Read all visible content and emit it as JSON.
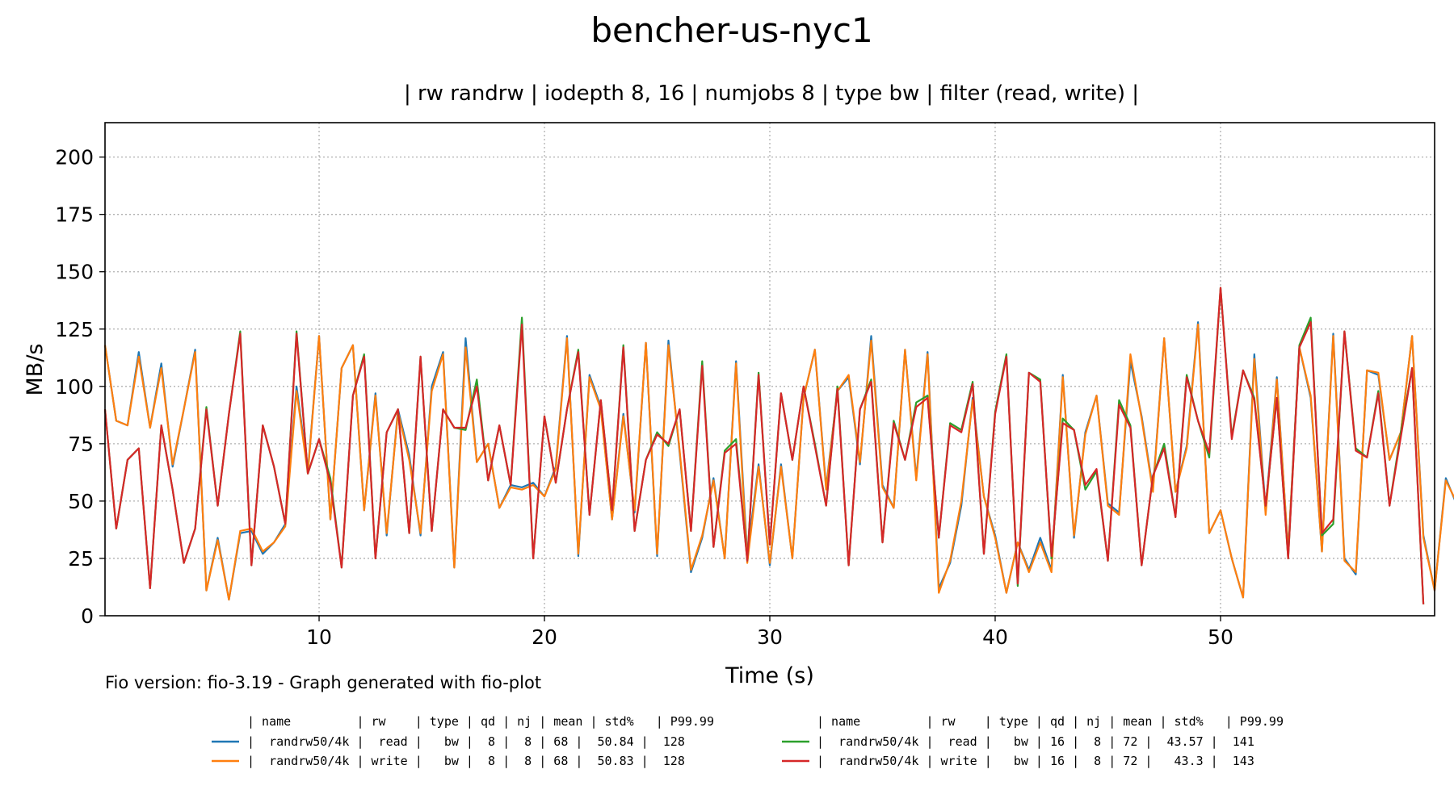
{
  "chart_data": {
    "type": "line",
    "title": "bencher-us-nyc1",
    "subtitle": "| rw randrw | iodepth 8, 16 | numjobs 8 | type bw | filter (read, write) |",
    "xlabel": "Time (s)",
    "ylabel": "MB/s",
    "xlim": [
      0.5,
      59.5
    ],
    "ylim": [
      0,
      215
    ],
    "x_ticks": [
      10,
      20,
      30,
      40,
      50
    ],
    "y_ticks": [
      0,
      25,
      50,
      75,
      100,
      125,
      150,
      175,
      200
    ],
    "grid": true,
    "footnote": "Fio version: fio-3.19 - Graph generated with fio-plot",
    "legend": {
      "placement": "bottom",
      "left_header": "| name         | rw    | type | qd | nj | mean | std%   | P99.99",
      "right_header": "| name         | rw    | type | qd | nj | mean | std%   | P99.99",
      "rows": [
        {
          "column": 0,
          "series": 0,
          "text": "|  randrw50/4k |  read |   bw |  8 |  8 | 68 |  50.84 |  128"
        },
        {
          "column": 0,
          "series": 1,
          "text": "|  randrw50/4k | write |   bw |  8 |  8 | 68 |  50.83 |  128"
        },
        {
          "column": 1,
          "series": 2,
          "text": "|  randrw50/4k |  read |   bw | 16 |  8 | 72 |  43.57 |  141"
        },
        {
          "column": 1,
          "series": 3,
          "text": "|  randrw50/4k | write |   bw | 16 |  8 | 72 |   43.3 |  143"
        }
      ]
    },
    "x_start": 0.5,
    "x_step": 0.5,
    "series": [
      {
        "name": "randrw50/4k read qd8",
        "color": "#1f77b4",
        "values": [
          118,
          85,
          83,
          115,
          82,
          110,
          65,
          90,
          116,
          11,
          34,
          7,
          36,
          37,
          27,
          32,
          40,
          100,
          63,
          122,
          42,
          108,
          118,
          46,
          97,
          35,
          90,
          70,
          35,
          100,
          115,
          21,
          121,
          67,
          75,
          47,
          57,
          56,
          58,
          52,
          65,
          122,
          26,
          105,
          91,
          42,
          88,
          45,
          119,
          26,
          120,
          71,
          19,
          34,
          60,
          25,
          111,
          26,
          66,
          22,
          66,
          25,
          95,
          116,
          56,
          98,
          104,
          66,
          122,
          57,
          47,
          116,
          60,
          115,
          12,
          23,
          48,
          95,
          52,
          35,
          10,
          32,
          20,
          34,
          20,
          105,
          34,
          80,
          96,
          49,
          45,
          111,
          87,
          55,
          121,
          54,
          74,
          128,
          36,
          46,
          25,
          8,
          114,
          46,
          104,
          28,
          117,
          95,
          28,
          123,
          25,
          18,
          107,
          105,
          68,
          80,
          122,
          35,
          11,
          60,
          48
        ]
      },
      {
        "name": "randrw50/4k write qd8",
        "color": "#ff7f0e",
        "values": [
          118,
          85,
          83,
          113,
          82,
          108,
          66,
          90,
          115,
          11,
          33,
          7,
          37,
          38,
          28,
          32,
          39,
          98,
          62,
          122,
          42,
          108,
          118,
          46,
          96,
          36,
          89,
          68,
          36,
          98,
          114,
          21,
          117,
          67,
          75,
          47,
          56,
          55,
          57,
          52,
          64,
          121,
          27,
          104,
          90,
          42,
          87,
          46,
          119,
          27,
          118,
          72,
          20,
          35,
          59,
          25,
          110,
          23,
          65,
          23,
          65,
          25,
          95,
          116,
          55,
          98,
          105,
          67,
          120,
          56,
          47,
          116,
          59,
          114,
          10,
          24,
          50,
          94,
          52,
          34,
          10,
          32,
          19,
          32,
          19,
          104,
          35,
          79,
          96,
          48,
          44,
          114,
          86,
          54,
          121,
          54,
          73,
          127,
          36,
          46,
          25,
          8,
          112,
          44,
          103,
          28,
          117,
          96,
          28,
          122,
          24,
          19,
          107,
          106,
          68,
          80,
          122,
          34,
          11,
          59,
          49
        ]
      },
      {
        "name": "randrw50/4k read qd16",
        "color": "#2ca02c",
        "values": [
          90,
          38,
          68,
          73,
          12,
          83,
          55,
          23,
          38,
          91,
          48,
          88,
          124,
          22,
          83,
          65,
          40,
          124,
          62,
          77,
          60,
          21,
          96,
          114,
          25,
          80,
          90,
          36,
          113,
          37,
          90,
          82,
          81,
          103,
          59,
          83,
          57,
          130,
          25,
          87,
          58,
          90,
          116,
          44,
          94,
          46,
          118,
          37,
          68,
          80,
          74,
          90,
          37,
          111,
          30,
          72,
          77,
          24,
          106,
          31,
          97,
          68,
          100,
          75,
          48,
          100,
          22,
          90,
          103,
          32,
          85,
          68,
          93,
          96,
          34,
          84,
          81,
          102,
          27,
          89,
          114,
          13,
          106,
          103,
          25,
          86,
          81,
          55,
          63,
          24,
          94,
          83,
          22,
          61,
          75,
          43,
          105,
          85,
          69,
          143,
          78,
          107,
          95,
          48,
          95,
          25,
          118,
          130,
          35,
          40,
          124,
          73,
          69,
          98,
          48,
          80,
          108,
          5
        ]
      },
      {
        "name": "randrw50/4k write qd16",
        "color": "#d62728",
        "values": [
          90,
          38,
          68,
          73,
          12,
          83,
          55,
          23,
          38,
          90,
          48,
          88,
          123,
          22,
          83,
          65,
          40,
          123,
          62,
          77,
          58,
          21,
          96,
          113,
          25,
          80,
          90,
          36,
          113,
          37,
          90,
          82,
          82,
          100,
          59,
          83,
          57,
          127,
          25,
          87,
          58,
          90,
          115,
          44,
          94,
          46,
          117,
          37,
          68,
          79,
          75,
          90,
          37,
          109,
          30,
          71,
          75,
          24,
          105,
          31,
          97,
          68,
          100,
          74,
          48,
          99,
          22,
          90,
          102,
          32,
          84,
          68,
          91,
          95,
          34,
          83,
          80,
          101,
          27,
          88,
          113,
          14,
          106,
          102,
          26,
          84,
          81,
          57,
          64,
          24,
          92,
          82,
          22,
          61,
          73,
          43,
          104,
          85,
          71,
          143,
          77,
          107,
          94,
          48,
          95,
          25,
          117,
          128,
          36,
          42,
          124,
          72,
          69,
          97,
          48,
          78,
          108,
          5
        ]
      }
    ]
  }
}
